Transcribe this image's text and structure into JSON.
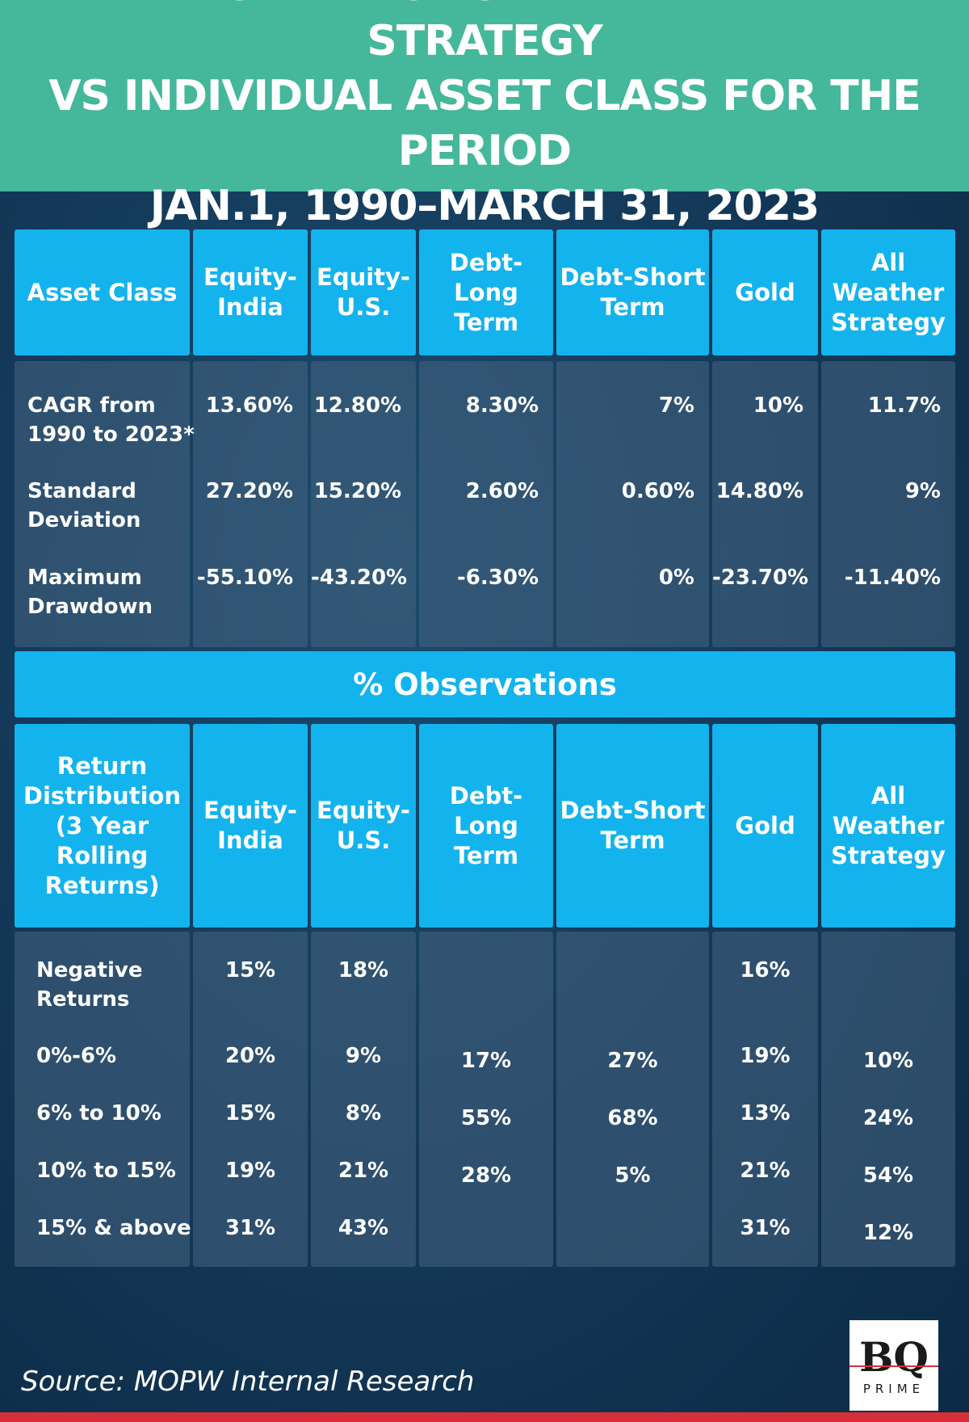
{
  "header": {
    "line1": "PERFORMANCE OF ALL WEATHER STRATEGY",
    "line2": "VS INDIVIDUAL ASSET CLASS FOR THE PERIOD",
    "line3": "JAN.1, 1990–MARCH 31, 2023"
  },
  "table1": {
    "columns": [
      "Asset Class",
      "Equity-\nIndia",
      "Equity-\nU.S.",
      "Debt-Long\nTerm",
      "Debt-Short\nTerm",
      "Gold",
      "All\nWeather\nStrategy"
    ],
    "rows": [
      {
        "label": "CAGR from\n1990 to 2023*",
        "values": [
          "13.60%",
          "12.80%",
          "8.30%",
          "7%",
          "10%",
          "11.7%"
        ]
      },
      {
        "label": "Standard\nDeviation",
        "values": [
          "27.20%",
          "15.20%",
          "2.60%",
          "0.60%",
          "14.80%",
          "9%"
        ]
      },
      {
        "label": "Maximum\nDrawdown",
        "values": [
          "-55.10%",
          "-43.20%",
          "-6.30%",
          "0%",
          "-23.70%",
          "-11.40%"
        ]
      }
    ]
  },
  "observations_title": "% Observations",
  "table2": {
    "columns": [
      "Return\nDistribution\n(3 Year\nRolling\nReturns)",
      "Equity-\nIndia",
      "Equity-\nU.S.",
      "Debt-Long\nTerm",
      "Debt-Short\nTerm",
      "Gold",
      "All\nWeather\nStrategy"
    ],
    "rows": [
      {
        "label": "Negative\nReturns",
        "values": [
          "15%",
          "18%",
          "",
          "",
          "16%",
          ""
        ]
      },
      {
        "label": "0%-6%",
        "values": [
          "20%",
          "9%",
          "17%",
          "27%",
          "19%",
          "10%"
        ]
      },
      {
        "label": "6% to 10%",
        "values": [
          "15%",
          "8%",
          "55%",
          "68%",
          "13%",
          "24%"
        ]
      },
      {
        "label": "10% to 15%",
        "values": [
          "19%",
          "21%",
          "28%",
          "5%",
          "21%",
          "54%"
        ]
      },
      {
        "label": "15% & above",
        "values": [
          "31%",
          "43%",
          "",
          "",
          "31%",
          "12%"
        ]
      }
    ]
  },
  "source": "Source: MOPW Internal Research",
  "logo": {
    "brand": "BQ",
    "sub": "PRIME"
  }
}
